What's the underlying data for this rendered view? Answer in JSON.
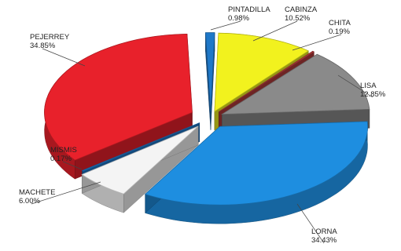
{
  "chart_data": {
    "type": "pie",
    "style": "3d-exploded",
    "slices": [
      {
        "name": "PINTADILLA",
        "value": 0.98,
        "label": "0.98%",
        "color": "#1f78c8"
      },
      {
        "name": "CABINZA",
        "value": 10.52,
        "label": "10.52%",
        "color": "#f2f21e"
      },
      {
        "name": "CHITA",
        "value": 0.19,
        "label": "0.19%",
        "color": "#b13a3a"
      },
      {
        "name": "LISA",
        "value": 12.85,
        "label": "12.85%",
        "color": "#8a8a8a"
      },
      {
        "name": "LORNA",
        "value": 34.43,
        "label": "34.43%",
        "color": "#1e8ee0"
      },
      {
        "name": "MACHETE",
        "value": 6.0,
        "label": "6.00%",
        "color": "#f4f4f4"
      },
      {
        "name": "MISMIS",
        "value": 0.17,
        "label": "0.17%",
        "color": "#1f78c8"
      },
      {
        "name": "PEJERREY",
        "value": 34.85,
        "label": "34.85%",
        "color": "#e8212b"
      }
    ],
    "legend": "none"
  }
}
